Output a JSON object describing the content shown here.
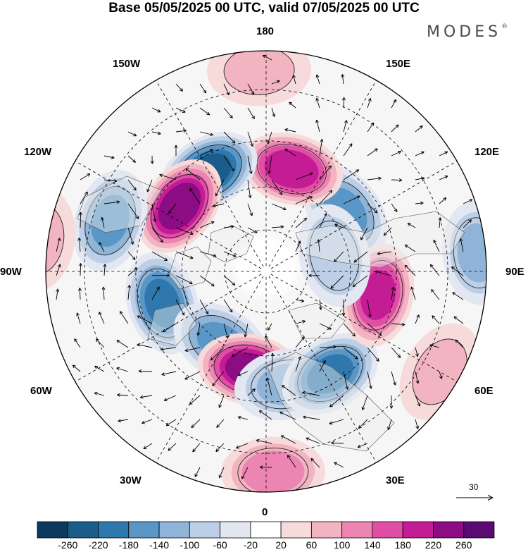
{
  "title": "Base 05/05/2025 00 UTC, valid 07/05/2025 00 UTC",
  "logo": {
    "text": "MODES",
    "mark": "®"
  },
  "longitude_labels": [
    {
      "id": "180",
      "text": "180"
    },
    {
      "id": "150e",
      "text": "150E"
    },
    {
      "id": "120e",
      "text": "120E"
    },
    {
      "id": "90e",
      "text": "90E"
    },
    {
      "id": "60e",
      "text": "60E"
    },
    {
      "id": "30e",
      "text": "30E"
    },
    {
      "id": "0",
      "text": "0"
    },
    {
      "id": "30w",
      "text": "30W"
    },
    {
      "id": "60w",
      "text": "60W"
    },
    {
      "id": "90w",
      "text": "90W"
    },
    {
      "id": "120w",
      "text": "120W"
    },
    {
      "id": "150w",
      "text": "150W"
    }
  ],
  "reference_vector": {
    "value": "30"
  },
  "colorbar": {
    "levels": [
      "-260",
      "-220",
      "-180",
      "-140",
      "-100",
      "-60",
      "-20",
      "20",
      "60",
      "100",
      "140",
      "180",
      "220",
      "260"
    ],
    "colors": [
      "#0b3a5c",
      "#1a5c8a",
      "#2f78ad",
      "#5a97c6",
      "#8fb4d8",
      "#bccfe6",
      "#e2e7f2",
      "#ffffff",
      "#f7dada",
      "#f1b4c0",
      "#ec85b2",
      "#e04fa6",
      "#c41c95",
      "#8c0c84",
      "#5a0a72"
    ]
  },
  "colors": {
    "land_fill": "#eeeeee",
    "coast": "#555555",
    "grid": "#000000"
  },
  "anomalies": [
    {
      "lon": 127,
      "lat": 55,
      "value": -140
    },
    {
      "lon": 166,
      "lat": 53,
      "value": 200
    },
    {
      "lon": -150,
      "lat": 50,
      "value": -220
    },
    {
      "lon": -127,
      "lat": 52,
      "value": 240
    },
    {
      "lon": -108,
      "lat": 35,
      "value": -140
    },
    {
      "lon": -73,
      "lat": 52,
      "value": -180
    },
    {
      "lon": -32,
      "lat": 60,
      "value": -140
    },
    {
      "lon": -10,
      "lat": 55,
      "value": 220
    },
    {
      "lon": 10,
      "lat": 50,
      "value": -100
    },
    {
      "lon": 32,
      "lat": 48,
      "value": -180
    },
    {
      "lon": 78,
      "lat": 50,
      "value": 180
    },
    {
      "lon": 103,
      "lat": 65,
      "value": -90
    },
    {
      "lon": 2,
      "lat": 25,
      "value": 110
    },
    {
      "lon": 95,
      "lat": 22,
      "value": -100
    },
    {
      "lon": -178,
      "lat": 25,
      "value": 60
    },
    {
      "lon": -98,
      "lat": 18,
      "value": 60
    },
    {
      "lon": 60,
      "lat": 25,
      "value": 60
    }
  ]
}
